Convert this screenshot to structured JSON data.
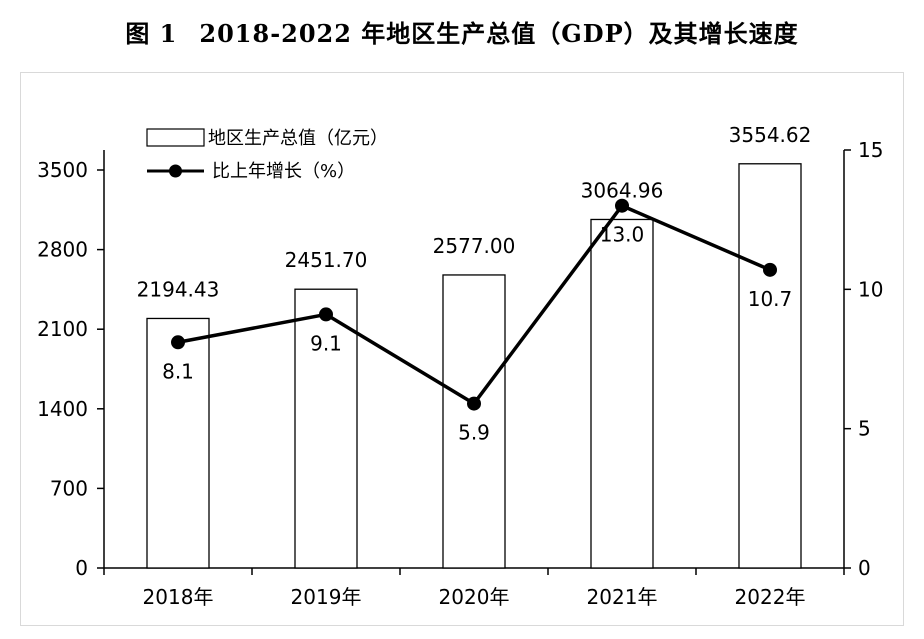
{
  "title": {
    "figure_no": "图 1",
    "text": "2018-2022 年地区生产总值（GDP）及其增长速度"
  },
  "chart_data": {
    "type": "bar",
    "categories": [
      "2018年",
      "2019年",
      "2020年",
      "2021年",
      "2022年"
    ],
    "series": [
      {
        "name": "地区生产总值（亿元）",
        "type": "bar",
        "axis": "left",
        "values": [
          2194.43,
          2451.7,
          2577.0,
          3064.96,
          3554.62
        ],
        "labels": [
          "2194.43",
          "2451.70",
          "2577.00",
          "3064.96",
          "3554.62"
        ]
      },
      {
        "name": "比上年增长（%）",
        "type": "line",
        "axis": "right",
        "values": [
          8.1,
          9.1,
          5.9,
          13.0,
          10.7
        ],
        "labels": [
          "8.1",
          "9.1",
          "5.9",
          "13.0",
          "10.7"
        ]
      }
    ],
    "y_left": {
      "min": 0,
      "max": 3500,
      "ticks": [
        0,
        700,
        1400,
        2100,
        2800,
        3500
      ]
    },
    "y_right": {
      "min": 0,
      "max": 15,
      "ticks": [
        0,
        5,
        10,
        15
      ]
    },
    "legend_position": "top-left",
    "grid": false,
    "colors": {
      "bar_fill": "#ffffff",
      "bar_stroke": "#000000",
      "line": "#000000"
    }
  }
}
